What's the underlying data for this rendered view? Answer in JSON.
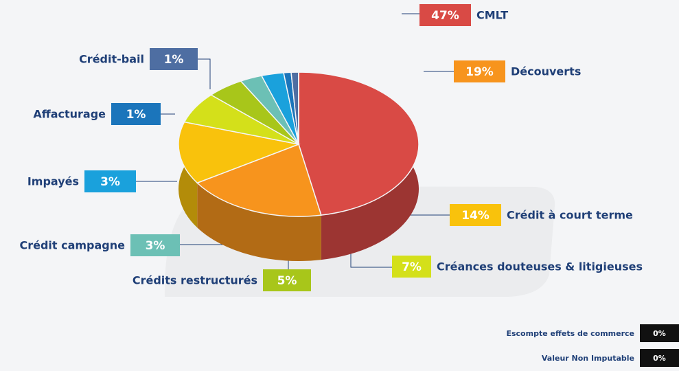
{
  "chart_data": {
    "type": "pie",
    "categories": [
      "CMLT",
      "Découverts",
      "Crédit à court terme",
      "Créances douteuses & litigieuses",
      "Crédits restructurés",
      "Crédit campagne",
      "Impayés",
      "Affacturage",
      "Crédit-bail",
      "Escompte effets de commerce",
      "Valeur Non Imputable"
    ],
    "values": [
      47,
      19,
      14,
      7,
      5,
      3,
      3,
      1,
      1,
      0,
      0
    ],
    "value_labels": [
      "47%",
      "19%",
      "14%",
      "7%",
      "5%",
      "3%",
      "3%",
      "1%",
      "1%",
      "0%",
      "0%"
    ],
    "colors": [
      "#d94a45",
      "#f7941d",
      "#f9c20c",
      "#d4e01a",
      "#a8c61a",
      "#6cc0b5",
      "#1aa1dc",
      "#1b75bb",
      "#4e6ea2",
      "#111111",
      "#111111"
    ]
  }
}
